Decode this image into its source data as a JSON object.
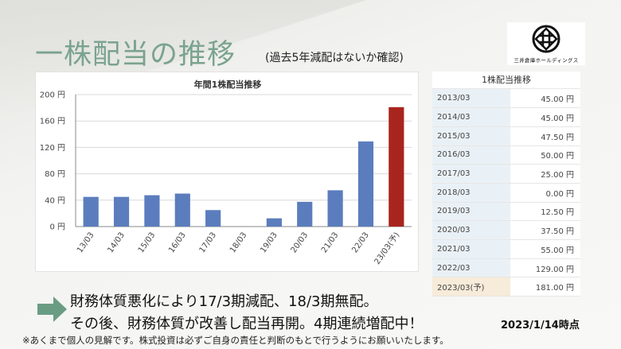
{
  "slide": {
    "title": "一株配当の推移",
    "subtitle": "(過去5年減配はないか確認)",
    "message_line1": "財務体質悪化により17/3期減配、18/3期無配。",
    "message_line2": "その後、財務体質が改善し配当再開。4期連続増配中！",
    "as_of": "2023/1/14時点",
    "disclaimer": "※あくまで個人の見解です。株式投資は必ずご自身の責任と判断のもとで行うようにお願いいたします。"
  },
  "logo": {
    "text": "三井倉庫ホールディングス",
    "icon": "mitsui-well-crest-icon"
  },
  "chart_data": {
    "type": "bar",
    "title": "年間1株配当推移",
    "categories": [
      "13/03",
      "14/03",
      "15/03",
      "16/03",
      "17/03",
      "18/03",
      "19/03",
      "20/03",
      "21/03",
      "22/03",
      "23/03(予)"
    ],
    "values": [
      45,
      45,
      47.5,
      50,
      25,
      0,
      12.5,
      37.5,
      55,
      129,
      181
    ],
    "ylim": [
      0,
      200
    ],
    "yticks": [
      0,
      40,
      80,
      120,
      160,
      200
    ],
    "ytick_labels": [
      "0 円",
      "40 円",
      "80 円",
      "120 円",
      "160 円",
      "200 円"
    ],
    "grid": true,
    "colors": {
      "actual": "#5b7dbd",
      "forecast": "#a9241e"
    },
    "forecast_index": 10
  },
  "table": {
    "title": "1株配当推移",
    "rows": [
      {
        "period": "2013/03",
        "amount": "45.00 円"
      },
      {
        "period": "2014/03",
        "amount": "45.00 円"
      },
      {
        "period": "2015/03",
        "amount": "47.50 円"
      },
      {
        "period": "2016/03",
        "amount": "50.00 円"
      },
      {
        "period": "2017/03",
        "amount": "25.00 円"
      },
      {
        "period": "2018/03",
        "amount": "0.00 円"
      },
      {
        "period": "2019/03",
        "amount": "12.50 円"
      },
      {
        "period": "2020/03",
        "amount": "37.50 円"
      },
      {
        "period": "2021/03",
        "amount": "55.00 円"
      },
      {
        "period": "2022/03",
        "amount": "129.00 円"
      },
      {
        "period": "2023/03(予)",
        "amount": "181.00 円"
      }
    ]
  },
  "colors": {
    "title_green": "#7aa38e",
    "arrow_green": "#6a9c84"
  }
}
